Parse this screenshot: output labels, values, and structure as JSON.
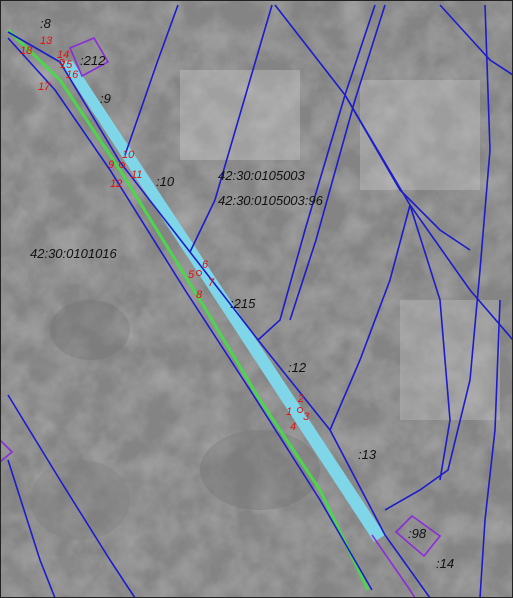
{
  "colors": {
    "parcel_boundary": "#1c1ccc",
    "strip_fill": "#7fd6e8",
    "green_line": "#4cd64c",
    "purple_outline": "#8c2bd9",
    "point_labels": "#e01010",
    "background": "#a9a9a9"
  },
  "parcel_labels": {
    "p8": ":8",
    "p212": ":212",
    "p9": ":9",
    "p10": ":10",
    "quarter_0105003": "42:30:0105003",
    "parcel_0105003_96": "42:30:0105003:96",
    "quarter_0101016": "42:30:0101016",
    "p215": ":215",
    "p12": ":12",
    "p13": ":13",
    "p98": ":98",
    "p14": ":14"
  },
  "point_labels": {
    "n18": "18",
    "n13": "13",
    "n14": "14",
    "n15": "15",
    "n16": "16",
    "n17": "17",
    "n9": "9",
    "n10": "10",
    "n11": "11",
    "n12": "12",
    "n6": "6",
    "n5": "5",
    "n7": "7",
    "n8": "8",
    "n2": "2",
    "n1": "1",
    "n3": "3",
    "n4": "4"
  }
}
